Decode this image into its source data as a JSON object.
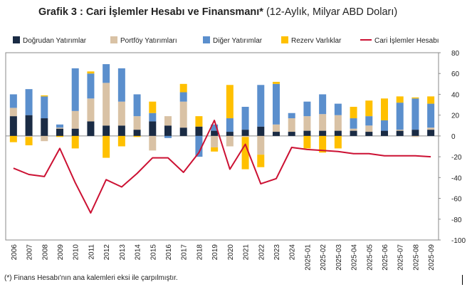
{
  "title": {
    "bold": "Grafik 3 : Cari İşlemler Hesabı ve Finansmanı*",
    "normal": "(12-Aylık, Milyar ABD Doları)"
  },
  "footnote": "(*) Finans Hesabı'nın ana kalemleri eksi ile çarpılmıştır.",
  "chart_data": {
    "type": "bar",
    "stacked": true,
    "categories": [
      "2006",
      "2007",
      "2008",
      "2009",
      "2010",
      "2011",
      "2012",
      "2013",
      "2014",
      "2015",
      "2016",
      "2017",
      "2018",
      "2019",
      "2020",
      "2021",
      "2022",
      "2023",
      "2024",
      "2025-01",
      "2025-02",
      "2025-03",
      "2025-04",
      "2025-05",
      "2025-06",
      "2025-07",
      "2025-08",
      "2025-09"
    ],
    "ylim": [
      -100,
      80
    ],
    "yticks": [
      -100,
      -80,
      -60,
      -40,
      -20,
      0,
      20,
      40,
      60,
      80
    ],
    "y_axis_position": "right",
    "grid": false,
    "legend_position": "top",
    "series": [
      {
        "name": "Doğrudan Yatırımlar",
        "color": "#1a2b44",
        "values": [
          19,
          20,
          17,
          7,
          7,
          14,
          10,
          10,
          6,
          14,
          10,
          8,
          9,
          5,
          4,
          6,
          9,
          4,
          4,
          5,
          5,
          5,
          5,
          4,
          5,
          5,
          6,
          6
        ]
      },
      {
        "name": "Portföy Yatırımları",
        "color": "#d9c2a5",
        "values": [
          8,
          -1,
          -5,
          1,
          17,
          22,
          41,
          23,
          13,
          -14,
          9,
          25,
          0,
          -11,
          -10,
          -1,
          -18,
          7,
          13,
          14,
          16,
          15,
          2,
          6,
          0,
          1,
          -1,
          2
        ]
      },
      {
        "name": "Diğer Yatırımlar",
        "color": "#5b8fcd",
        "values": [
          13,
          25,
          21,
          3,
          41,
          24,
          18,
          32,
          21,
          8,
          -2,
          9,
          -20,
          6,
          13,
          22,
          40,
          39,
          5,
          14,
          19,
          11,
          10,
          9,
          10,
          26,
          30,
          23
        ]
      },
      {
        "name": "Rezerv Varlıklar",
        "color": "#ffc000",
        "values": [
          -6,
          -8,
          1,
          -1,
          -12,
          2,
          -21,
          -10,
          -1,
          11,
          0,
          8,
          10,
          -4,
          32,
          -31,
          -12,
          2,
          0,
          -12,
          -16,
          -12,
          11,
          15,
          21,
          6,
          1,
          7
        ]
      }
    ],
    "line": {
      "name": "Cari İşlemler Hesabı",
      "color": "#cc1133",
      "values": [
        -31,
        -37,
        -39,
        -12,
        -45,
        -74,
        -42,
        -49,
        -36,
        -21,
        -21,
        -35,
        -16,
        15,
        -32,
        -8,
        -46,
        -41,
        -11,
        -13,
        -14,
        -15,
        -17,
        -17,
        -19,
        -19,
        -19,
        -20
      ]
    }
  }
}
